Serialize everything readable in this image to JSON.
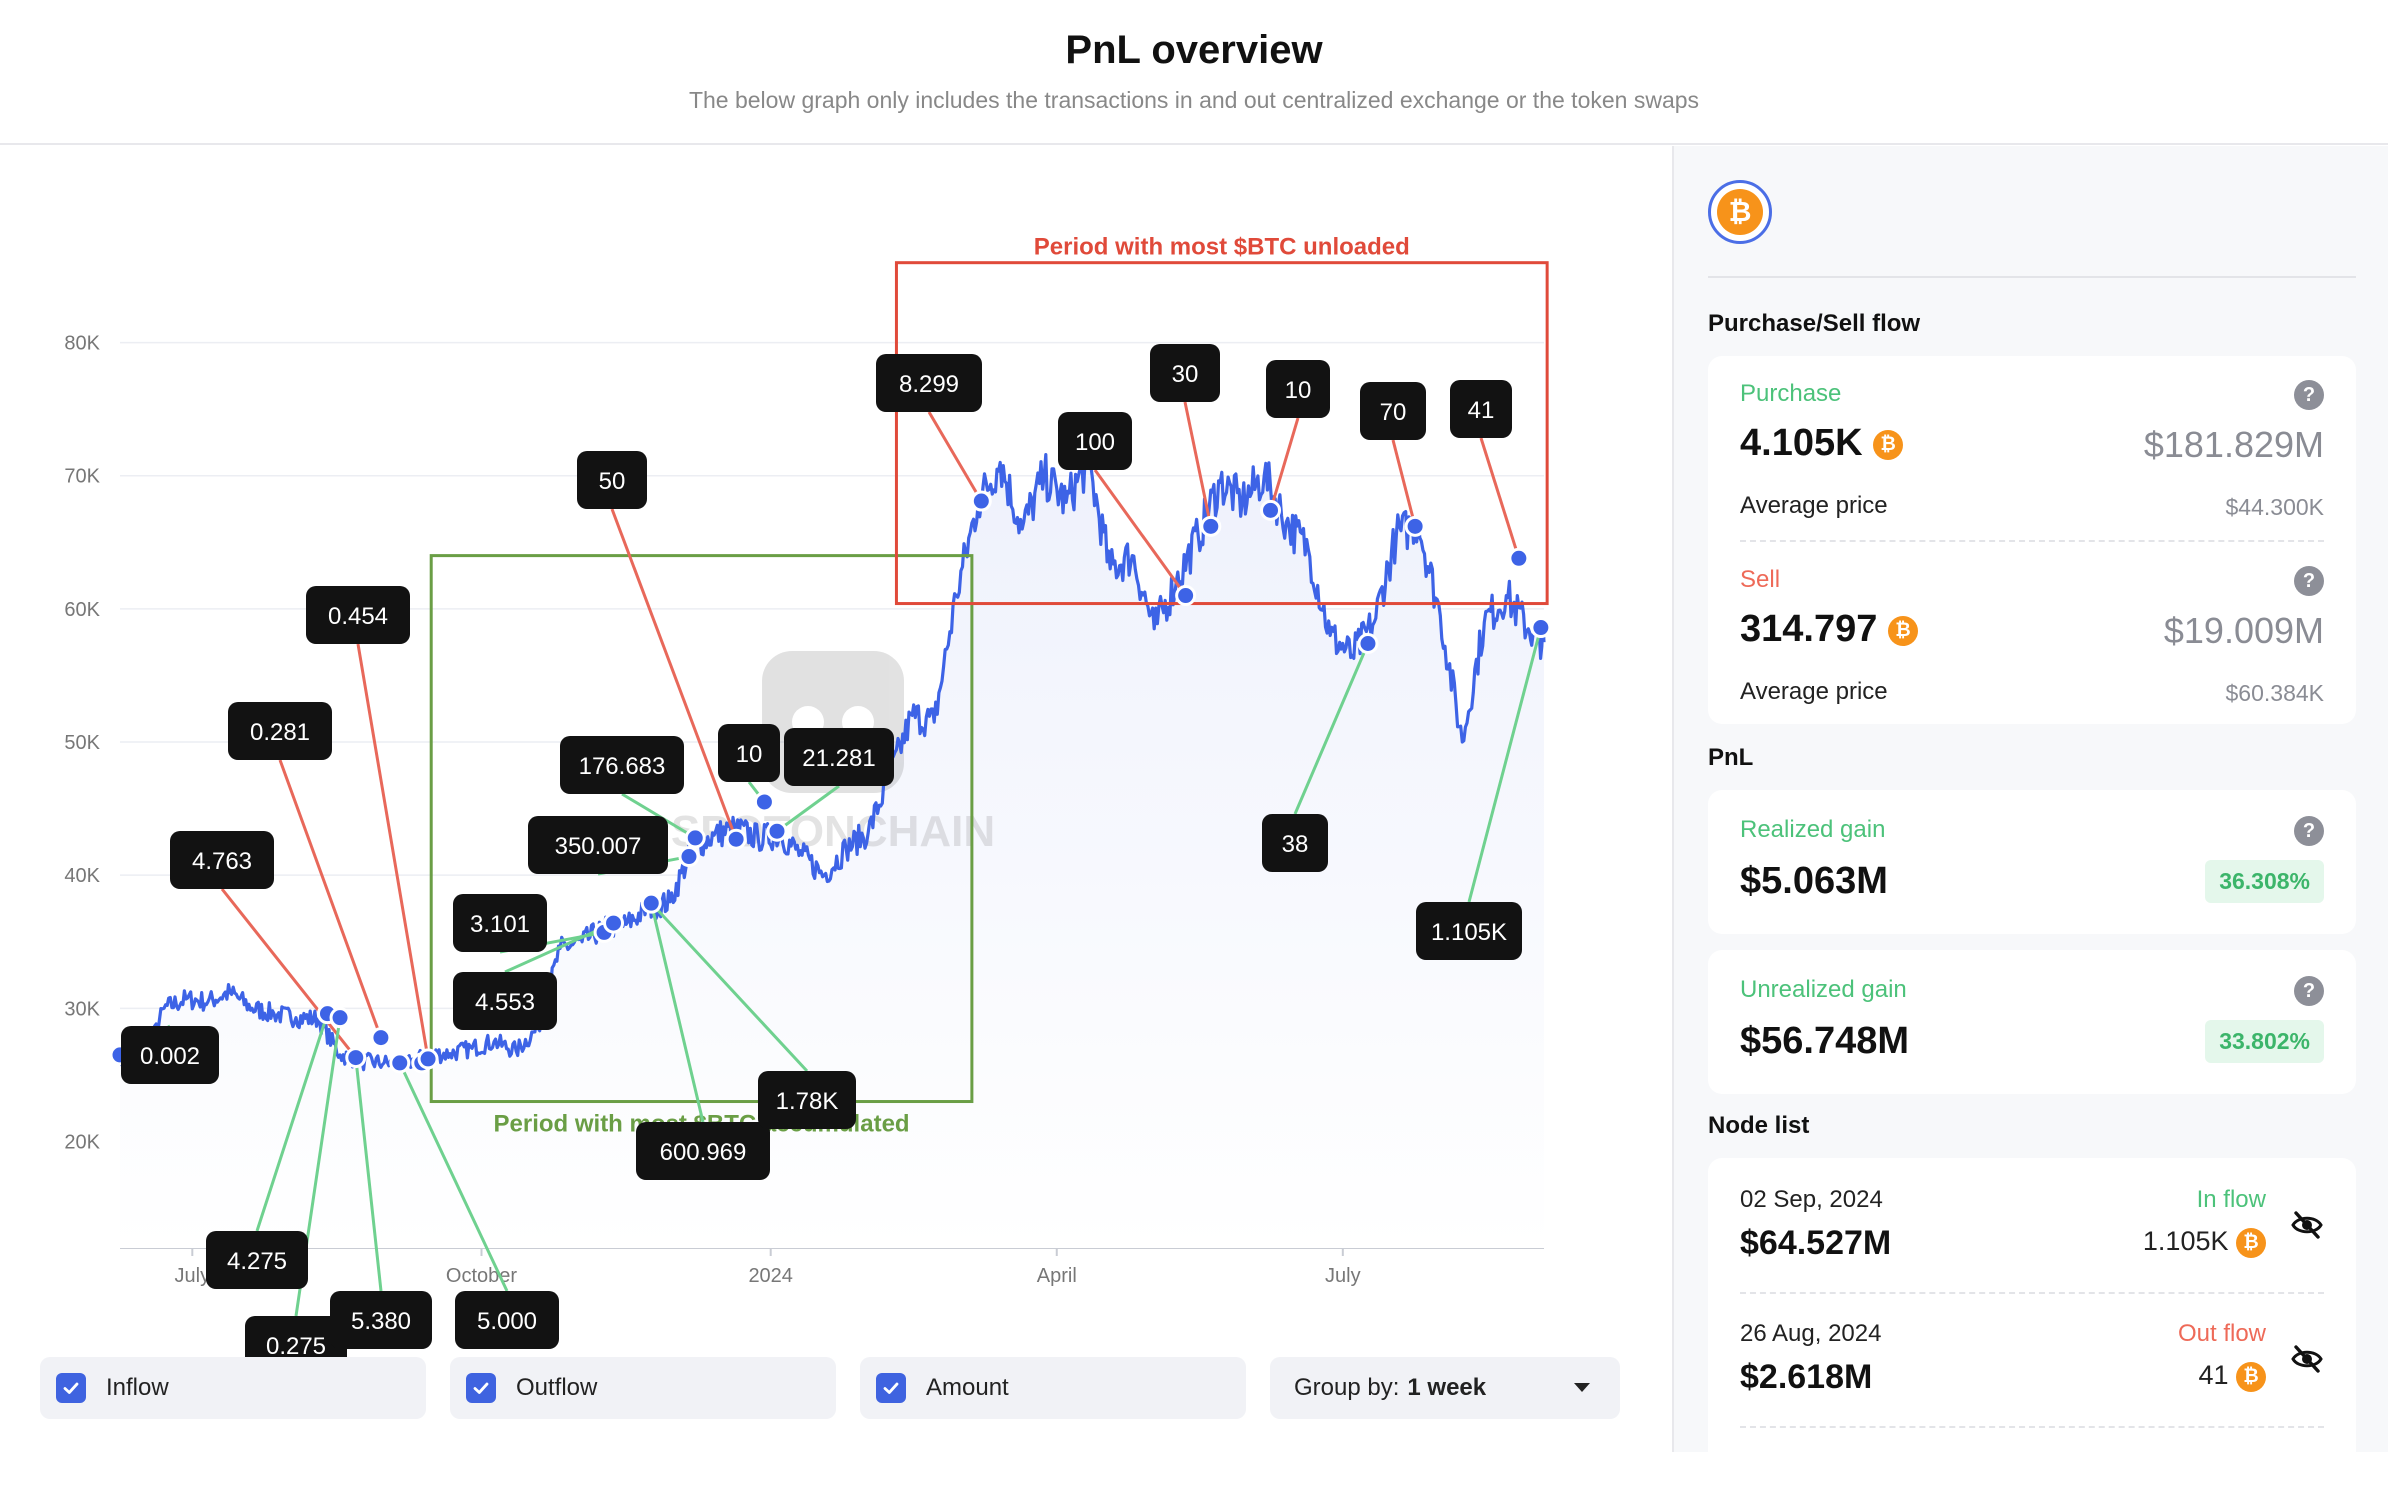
{
  "header": {
    "title": "PnL overview",
    "subtitle": "The below graph only includes the transactions in and out centralized exchange or the token swaps"
  },
  "chart_data": {
    "type": "line",
    "title": "PnL overview",
    "ylim": [
      12000,
      85000
    ],
    "y_ticks": [
      20000,
      30000,
      40000,
      50000,
      60000,
      70000,
      80000
    ],
    "y_tick_labels": [
      "20K",
      "30K",
      "40K",
      "50K",
      "60K",
      "70K",
      "80K"
    ],
    "x_tick_labels": [
      "July",
      "October",
      "2024",
      "April",
      "July"
    ],
    "x_tick_dates": [
      "2023-07-01",
      "2023-10-01",
      "2024-01-01",
      "2024-04-01",
      "2024-07-01"
    ],
    "x_range": [
      "2023-06-08",
      "2024-09-03"
    ],
    "grid": true,
    "series": [
      {
        "name": "",
        "x": [
          "2023-06-08",
          "2023-06-15",
          "2023-06-22",
          "2023-06-29",
          "2023-07-06",
          "2023-07-13",
          "2023-07-20",
          "2023-07-27",
          "2023-08-03",
          "2023-08-10",
          "2023-08-17",
          "2023-08-24",
          "2023-08-31",
          "2023-09-07",
          "2023-09-14",
          "2023-09-21",
          "2023-09-28",
          "2023-10-05",
          "2023-10-12",
          "2023-10-19",
          "2023-10-26",
          "2023-11-02",
          "2023-11-09",
          "2023-11-16",
          "2023-11-23",
          "2023-11-30",
          "2023-12-07",
          "2023-12-14",
          "2023-12-21",
          "2023-12-28",
          "2024-01-04",
          "2024-01-11",
          "2024-01-18",
          "2024-01-25",
          "2024-02-01",
          "2024-02-08",
          "2024-02-15",
          "2024-02-22",
          "2024-02-29",
          "2024-03-07",
          "2024-03-14",
          "2024-03-21",
          "2024-03-28",
          "2024-04-04",
          "2024-04-11",
          "2024-04-18",
          "2024-04-25",
          "2024-05-02",
          "2024-05-09",
          "2024-05-16",
          "2024-05-23",
          "2024-05-30",
          "2024-06-06",
          "2024-06-13",
          "2024-06-20",
          "2024-06-27",
          "2024-07-04",
          "2024-07-11",
          "2024-07-18",
          "2024-07-25",
          "2024-08-01",
          "2024-08-08",
          "2024-08-15",
          "2024-08-22",
          "2024-08-29",
          "2024-09-03"
        ],
        "y": [
          26500,
          25500,
          30000,
          30700,
          30500,
          31200,
          30000,
          29600,
          29300,
          29200,
          26500,
          26000,
          25900,
          25800,
          26500,
          26600,
          27000,
          27500,
          26800,
          28500,
          34500,
          35000,
          36000,
          36300,
          37500,
          38000,
          42000,
          43000,
          43500,
          42800,
          43000,
          41500,
          40000,
          42000,
          43200,
          47500,
          52000,
          51500,
          61000,
          68000,
          71000,
          66000,
          70000,
          68000,
          71000,
          63000,
          64000,
          58500,
          62000,
          65500,
          69500,
          68000,
          70000,
          66500,
          64500,
          58000,
          56500,
          59000,
          65500,
          66500,
          59500,
          50000,
          59000,
          61000,
          58500,
          57500
        ]
      }
    ],
    "markers": [
      {
        "date": "2023-06-08",
        "price": 26500
      },
      {
        "date": "2023-08-13",
        "price": 29600
      },
      {
        "date": "2023-08-17",
        "price": 29300
      },
      {
        "date": "2023-08-22",
        "price": 26300
      },
      {
        "date": "2023-08-30",
        "price": 27800
      },
      {
        "date": "2023-09-05",
        "price": 25900
      },
      {
        "date": "2023-09-12",
        "price": 25900
      },
      {
        "date": "2023-09-14",
        "price": 26200
      },
      {
        "date": "2023-11-09",
        "price": 35700
      },
      {
        "date": "2023-11-12",
        "price": 36400
      },
      {
        "date": "2023-11-24",
        "price": 37900
      },
      {
        "date": "2023-12-06",
        "price": 41400
      },
      {
        "date": "2023-12-08",
        "price": 42800
      },
      {
        "date": "2023-12-21",
        "price": 42700
      },
      {
        "date": "2023-12-30",
        "price": 45500
      },
      {
        "date": "2024-01-03",
        "price": 43300
      },
      {
        "date": "2024-03-08",
        "price": 68100
      },
      {
        "date": "2024-05-12",
        "price": 61000
      },
      {
        "date": "2024-05-20",
        "price": 66200
      },
      {
        "date": "2024-06-08",
        "price": 67400
      },
      {
        "date": "2024-07-09",
        "price": 57400
      },
      {
        "date": "2024-07-24",
        "price": 66200
      },
      {
        "date": "2024-08-26",
        "price": 63800
      },
      {
        "date": "2024-09-02",
        "price": 58600
      }
    ],
    "labels": [
      {
        "text": "0.002",
        "kind": "inflow",
        "marker": 0
      },
      {
        "text": "4.763",
        "kind": "outflow",
        "marker": 3
      },
      {
        "text": "0.281",
        "kind": "outflow",
        "marker": 4
      },
      {
        "text": "0.454",
        "kind": "outflow",
        "marker": 7
      },
      {
        "text": "4.275",
        "kind": "inflow",
        "marker": 1
      },
      {
        "text": "0.275",
        "kind": "inflow",
        "marker": 2
      },
      {
        "text": "5.380",
        "kind": "inflow",
        "marker": 3
      },
      {
        "text": "5.000",
        "kind": "inflow",
        "marker": 5
      },
      {
        "text": "3.101",
        "kind": "inflow",
        "marker": 8
      },
      {
        "text": "4.553",
        "kind": "inflow",
        "marker": 9
      },
      {
        "text": "600.969",
        "kind": "inflow",
        "marker": 10
      },
      {
        "text": "1.78K",
        "kind": "inflow",
        "marker": 10
      },
      {
        "text": "350.007",
        "kind": "inflow",
        "marker": 11
      },
      {
        "text": "176.683",
        "kind": "inflow",
        "marker": 12
      },
      {
        "text": "50",
        "kind": "outflow",
        "marker": 13
      },
      {
        "text": "10",
        "kind": "inflow",
        "marker": 14
      },
      {
        "text": "21.281",
        "kind": "inflow",
        "marker": 15
      },
      {
        "text": "8.299",
        "kind": "outflow",
        "marker": 16
      },
      {
        "text": "100",
        "kind": "outflow",
        "marker": 17
      },
      {
        "text": "30",
        "kind": "outflow",
        "marker": 18
      },
      {
        "text": "10",
        "kind": "outflow",
        "marker": 19
      },
      {
        "text": "70",
        "kind": "outflow",
        "marker": 21
      },
      {
        "text": "41",
        "kind": "outflow",
        "marker": 22
      },
      {
        "text": "38",
        "kind": "inflow",
        "marker": 20
      },
      {
        "text": "1.105K",
        "kind": "inflow",
        "marker": 23
      }
    ],
    "annotations": [
      {
        "text": "Period with most $BTC accumulated",
        "color": "#6a9e45",
        "from": "2023-09-15",
        "to": "2024-03-05",
        "ylim": [
          23000,
          64000
        ]
      },
      {
        "text": "Period with most $BTC unloaded",
        "color": "#e04a3a",
        "from": "2024-02-10",
        "to": "2024-09-04",
        "ylim": [
          60400,
          86000
        ]
      }
    ],
    "colors": {
      "line": "#3d63e6",
      "inflow": "#6fd18f",
      "outflow": "#e8685a",
      "area": "#eef1fc"
    }
  },
  "watermark": "SPOTONCHAIN",
  "controls": {
    "inflow": "Inflow",
    "outflow": "Outflow",
    "amount": "Amount",
    "group_prefix": "Group by:",
    "group_value": "1 week"
  },
  "side": {
    "coin_symbol": "₿",
    "flow_title": "Purchase/Sell flow",
    "purchase": {
      "label": "Purchase",
      "amount": "4.105K",
      "usd": "$181.829M",
      "avg_label": "Average price",
      "avg_value": "$44.300K"
    },
    "sell": {
      "label": "Sell",
      "amount": "314.797",
      "usd": "$19.009M",
      "avg_label": "Average price",
      "avg_value": "$60.384K"
    },
    "pnl_title": "PnL",
    "realized": {
      "label": "Realized gain",
      "value": "$5.063M",
      "pct": "36.308%"
    },
    "unrealized": {
      "label": "Unrealized gain",
      "value": "$56.748M",
      "pct": "33.802%"
    },
    "node_title": "Node list",
    "nodes": [
      {
        "date": "02 Sep, 2024",
        "value": "$64.527M",
        "flow_label": "In flow",
        "flow_kind": "in",
        "amount": "1.105K"
      },
      {
        "date": "26 Aug, 2024",
        "value": "$2.618M",
        "flow_label": "Out flow",
        "flow_kind": "out",
        "amount": "41"
      }
    ]
  }
}
